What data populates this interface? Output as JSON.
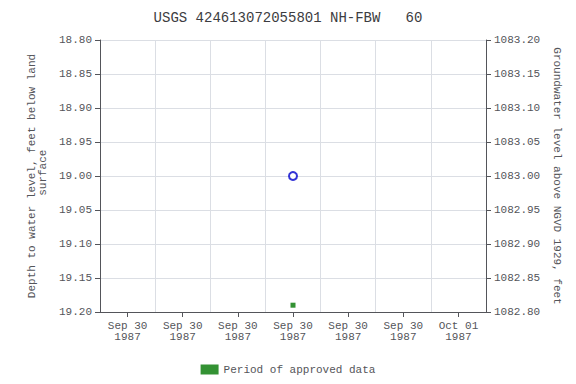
{
  "chart_data": {
    "type": "scatter",
    "title": "USGS 424613072055801 NH-FBW   60",
    "y_label": "Depth to water level, feet below land\n surface",
    "y2_label": "Groundwater level above NGVD 1929, feet",
    "categories": [
      "Sep 30\n1987",
      "Sep 30\n1987",
      "Sep 30\n1987",
      "Sep 30\n1987",
      "Sep 30\n1987",
      "Sep 30\n1987",
      "Oct 01\n1987"
    ],
    "series": [
      {
        "color": "#0000cc",
        "marker": "open_circle",
        "values": [
          null,
          null,
          null,
          19.0,
          null,
          null,
          null
        ]
      },
      {
        "name": "Period of approved data",
        "color": "#007700",
        "marker": "square",
        "values": [
          null,
          null,
          null,
          19.19,
          null,
          null,
          null
        ]
      }
    ],
    "ylim": [
      19.2,
      18.8
    ],
    "yticks": [
      {
        "value": 18.8,
        "label": "18.80"
      },
      {
        "value": 18.85,
        "label": "18.85"
      },
      {
        "value": 18.9,
        "label": "18.90"
      },
      {
        "value": 18.95,
        "label": "18.95"
      },
      {
        "value": 19.0,
        "label": "19.00"
      },
      {
        "value": 19.05,
        "label": "19.05"
      },
      {
        "value": 19.1,
        "label": "19.10"
      },
      {
        "value": 19.15,
        "label": "19.15"
      },
      {
        "value": 19.2,
        "label": "19.20"
      }
    ],
    "y2lim": [
      1082.8,
      1083.2
    ],
    "y2ticks": [
      {
        "value": 1082.8,
        "label": "1082.80"
      },
      {
        "value": 1082.85,
        "label": "1082.85"
      },
      {
        "value": 1082.9,
        "label": "1082.90"
      },
      {
        "value": 1082.95,
        "label": "1082.95"
      },
      {
        "value": 1083.0,
        "label": "1083.00"
      },
      {
        "value": 1083.05,
        "label": "1083.05"
      },
      {
        "value": 1083.1,
        "label": "1083.10"
      },
      {
        "value": 1083.15,
        "label": "1083.15"
      },
      {
        "value": 1083.2,
        "label": "1083.20"
      }
    ],
    "grid": true,
    "legend": "bottom"
  }
}
